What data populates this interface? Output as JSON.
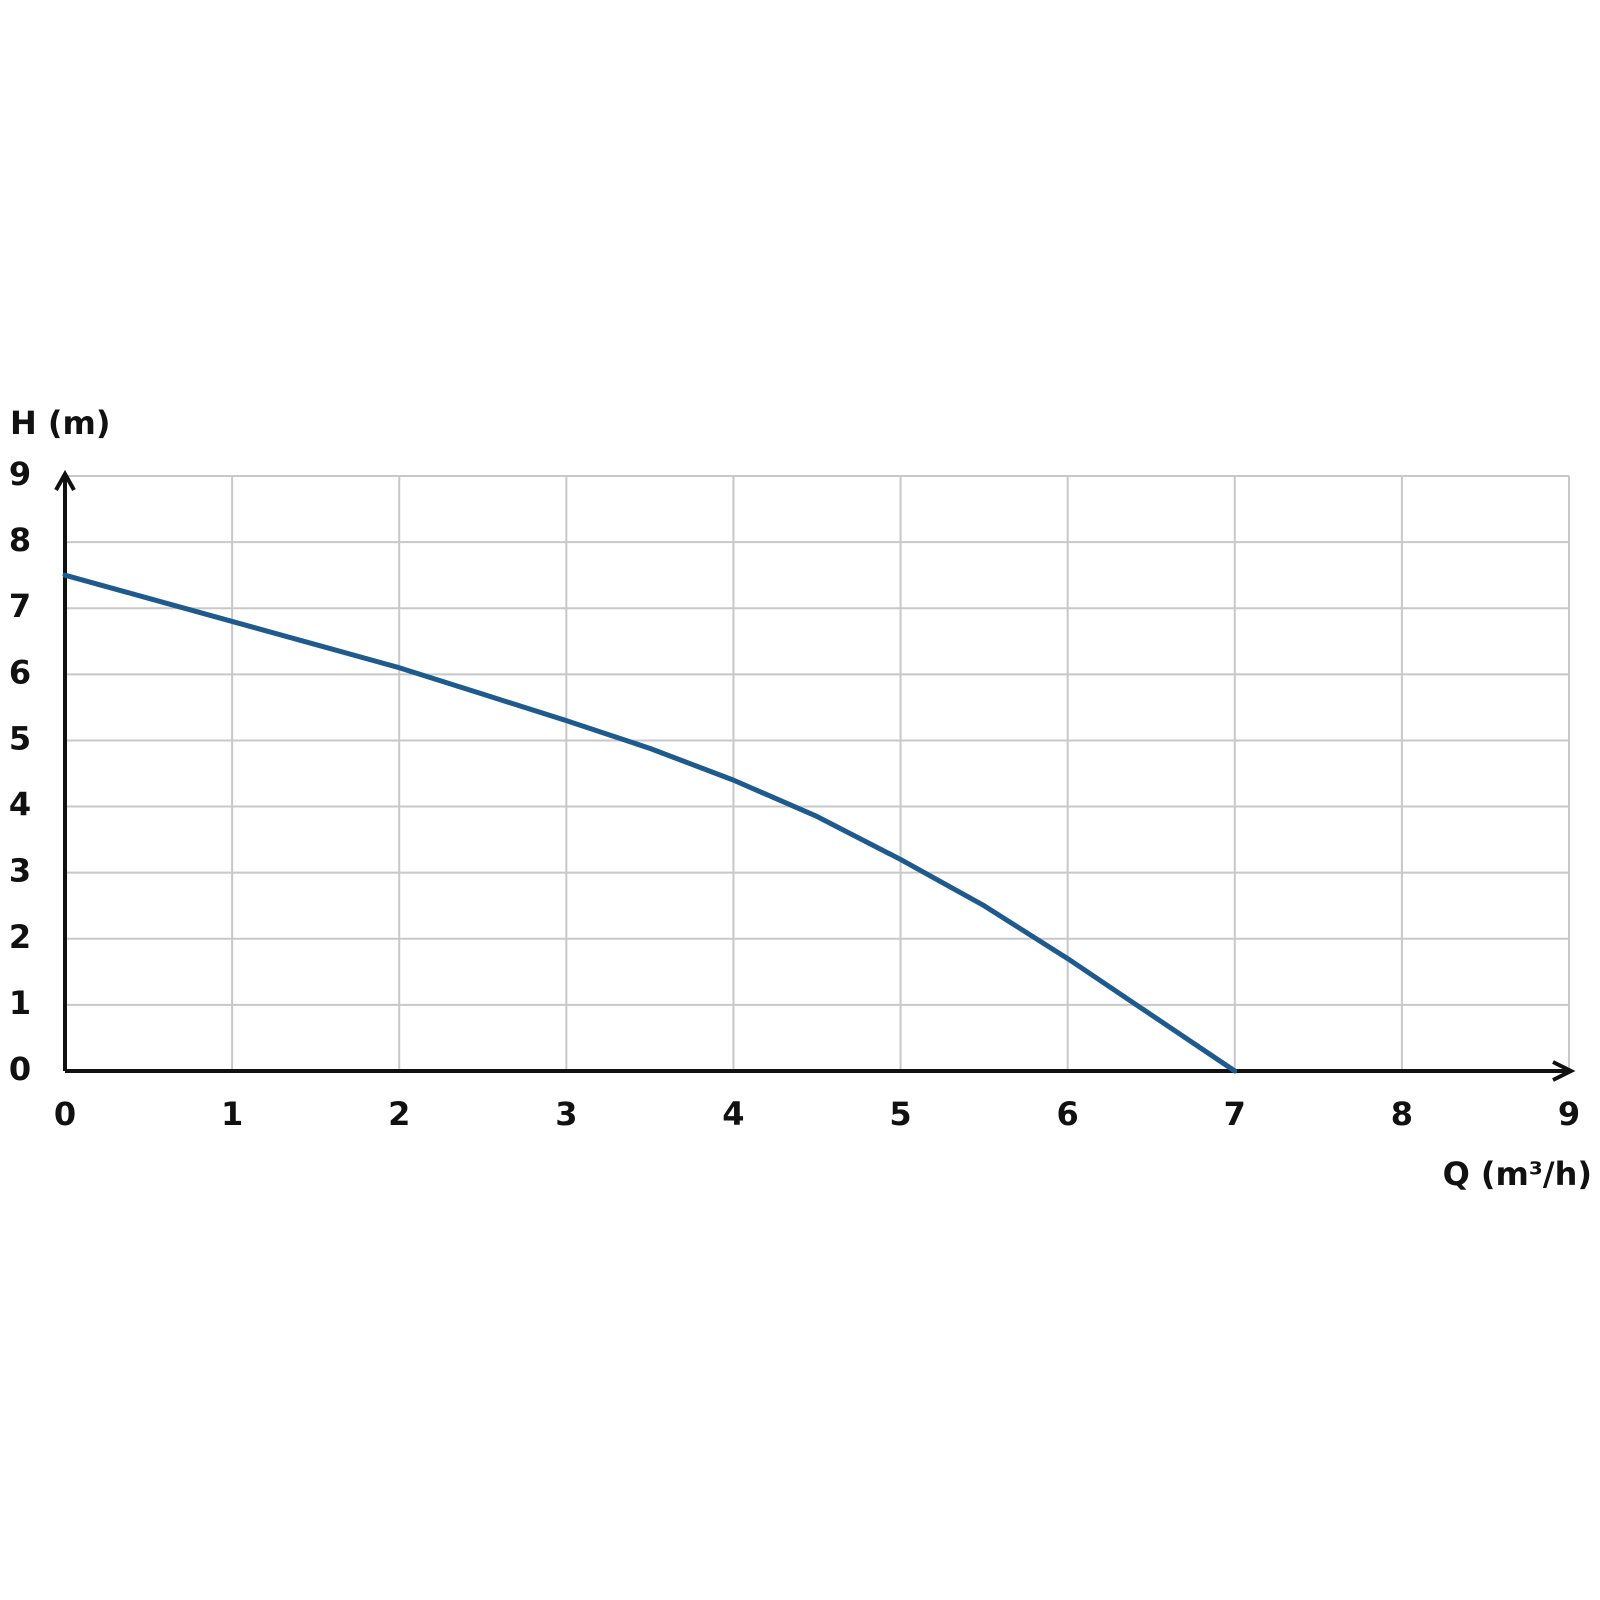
{
  "chart_data": {
    "type": "line",
    "y_label": "H (m)",
    "x_label": "Q (m³/h)",
    "x": [
      0,
      0.5,
      1,
      1.5,
      2,
      2.5,
      3,
      3.5,
      4,
      4.5,
      5,
      5.5,
      6,
      6.5,
      7
    ],
    "values": [
      7.5,
      7.15,
      6.8,
      6.45,
      6.1,
      5.7,
      5.3,
      4.88,
      4.4,
      3.85,
      3.2,
      2.5,
      1.7,
      0.85,
      0
    ],
    "color": "#1f5a8e",
    "xlim": [
      0,
      9
    ],
    "xticks": [
      0,
      1,
      2,
      3,
      4,
      5,
      6,
      7,
      8,
      9
    ],
    "ylim": [
      0,
      9
    ],
    "yticks": [
      0,
      1,
      2,
      3,
      4,
      5,
      6,
      7,
      8,
      9
    ],
    "grid": true
  }
}
